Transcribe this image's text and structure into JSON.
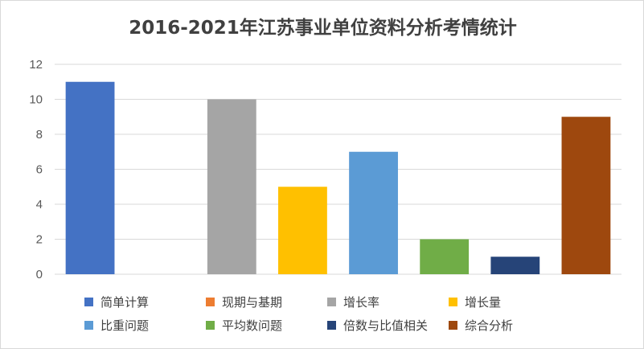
{
  "chart_data": {
    "type": "bar",
    "title": "2016-2021年江苏事业单位资料分析考情统计",
    "xlabel": "",
    "ylabel": "",
    "ylim": [
      0,
      12
    ],
    "yticks": [
      "0",
      "2",
      "4",
      "6",
      "8",
      "10",
      "12"
    ],
    "grid": true,
    "legend_position": "bottom",
    "categories": [
      "简单计算",
      "现期与基期",
      "增长率",
      "增长量",
      "比重问题",
      "平均数问题",
      "倍数与比值相关",
      "综合分析"
    ],
    "values": [
      11,
      0,
      10,
      5,
      7,
      2,
      1,
      9
    ],
    "colors": [
      "#4472C4",
      "#ED7D31",
      "#A5A5A5",
      "#FFC000",
      "#5B9BD5",
      "#70AD47",
      "#264478",
      "#9E480E"
    ]
  }
}
